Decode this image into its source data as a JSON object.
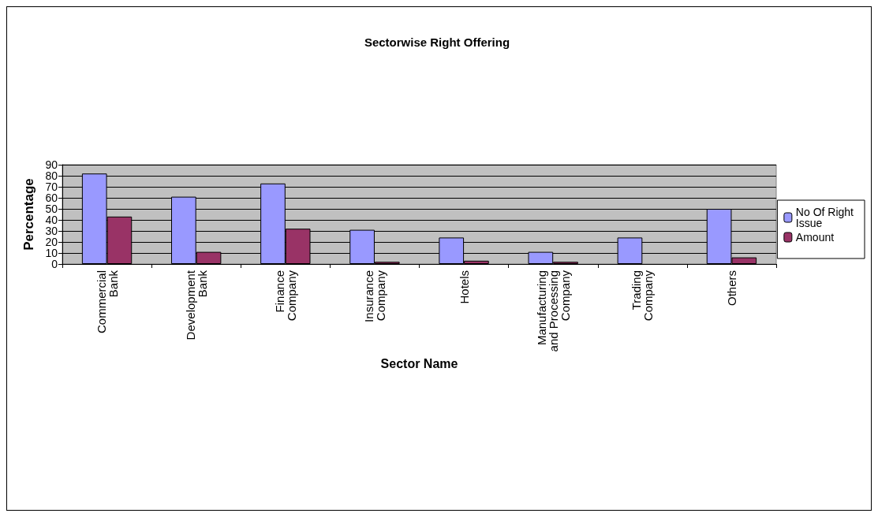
{
  "chart_data": {
    "type": "bar",
    "title": "Sectorwise Right Offering",
    "xlabel": "Sector Name",
    "ylabel": "Percentage",
    "categories": [
      "Commercial Bank",
      "Development Bank",
      "Finance Company",
      "Insurance Company",
      "Hotels",
      "Manufacturing and Processing Company",
      "Trading Company",
      "Others"
    ],
    "series": [
      {
        "name": "No Of Right Issue",
        "color": "#9999ff",
        "values": [
          82,
          61,
          73,
          31,
          24,
          11,
          24,
          50
        ]
      },
      {
        "name": "Amount",
        "color": "#993366",
        "values": [
          43,
          11,
          32,
          2,
          3,
          2,
          0,
          6
        ]
      }
    ],
    "ylim": [
      0,
      90
    ],
    "yticks": [
      0,
      10,
      20,
      30,
      40,
      50,
      60,
      70,
      80,
      90
    ],
    "grid": "y",
    "legend": "right"
  }
}
